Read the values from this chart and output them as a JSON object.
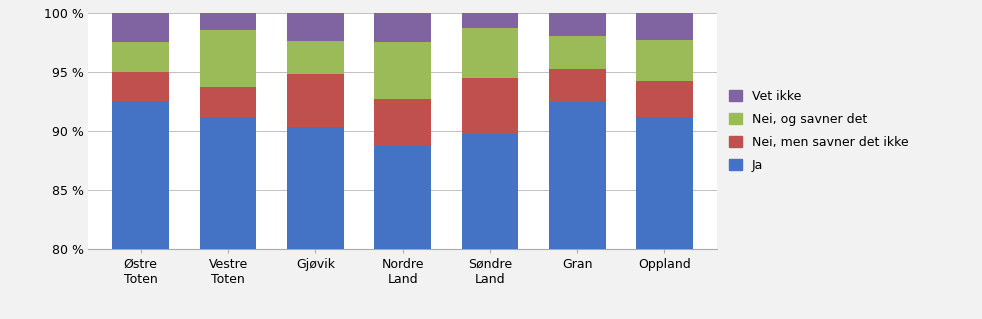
{
  "categories": [
    "Østre\nToten",
    "Vestre\nToten",
    "Gjøvik",
    "Nordre\nLand",
    "Søndre\nLand",
    "Gran",
    "Oppland"
  ],
  "ja": [
    92.5,
    91.2,
    90.3,
    88.7,
    89.7,
    92.4,
    91.2
  ],
  "nei_men_savner_ikke": [
    2.5,
    2.5,
    4.5,
    4.0,
    4.8,
    2.8,
    3.0
  ],
  "nei_og_savner": [
    2.5,
    4.8,
    2.8,
    4.8,
    4.2,
    2.8,
    3.5
  ],
  "vet_ikke": [
    2.5,
    1.5,
    2.4,
    2.5,
    1.3,
    2.0,
    2.3
  ],
  "color_ja": "#4472C4",
  "color_nei_men": "#C0504D",
  "color_nei_og": "#9BBB59",
  "color_vet_ikke": "#8064A2",
  "ylim_min": 80,
  "ylim_max": 100,
  "yticks": [
    80,
    85,
    90,
    95,
    100
  ],
  "ytick_labels": [
    "80 %",
    "85 %",
    "90 %",
    "95 %",
    "100 %"
  ],
  "background_color": "#f2f2f2",
  "plot_bg_color": "#ffffff",
  "bar_width": 0.65,
  "legend_labels_ordered": [
    "Vet ikke",
    "Nei, og savner det",
    "Nei, men savner det ikke",
    "Ja"
  ]
}
